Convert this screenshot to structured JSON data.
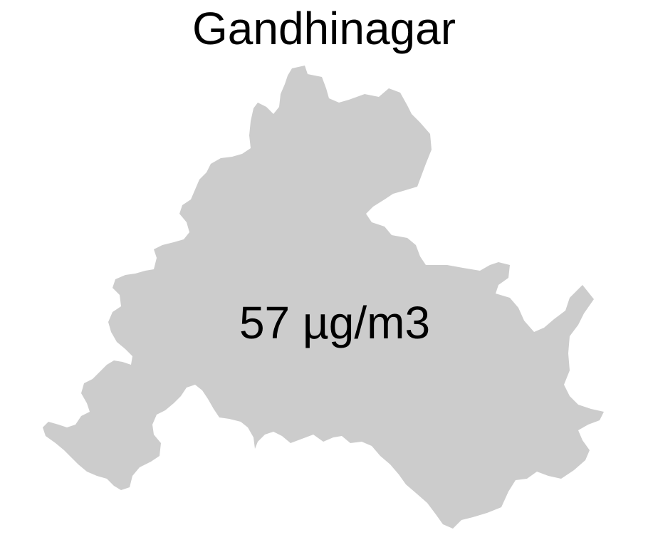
{
  "map": {
    "title": "Gandhinagar",
    "value_label": "57 µg/m3",
    "region_fill": "#cccccc",
    "text_color": "#000000",
    "background": "#ffffff"
  }
}
